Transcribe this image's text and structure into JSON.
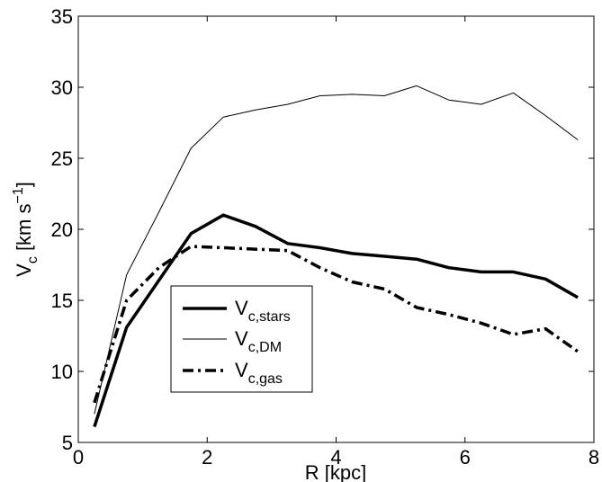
{
  "chart_data": {
    "type": "line",
    "xlabel": "R [kpc]",
    "ylabel": {
      "base": "V",
      "sub": "c",
      "rest": " [km s",
      "sup": "−1",
      "end": "]"
    },
    "xlim": [
      0,
      8
    ],
    "ylim": [
      5,
      35
    ],
    "xticks": [
      0,
      2,
      4,
      6,
      8
    ],
    "yticks": [
      5,
      10,
      15,
      20,
      25,
      30,
      35
    ],
    "grid": false,
    "legend_position": "lower-left",
    "series": [
      {
        "name": "V",
        "name_sub": "c,stars",
        "style": "solid-thick",
        "x": [
          0.25,
          0.75,
          1.25,
          1.75,
          2.25,
          2.75,
          3.25,
          3.75,
          4.25,
          4.75,
          5.25,
          5.75,
          6.25,
          6.75,
          7.25,
          7.75
        ],
        "y": [
          6.1,
          13.1,
          16.4,
          19.7,
          21.0,
          20.2,
          19.0,
          18.7,
          18.3,
          18.1,
          17.9,
          17.3,
          17.0,
          17.0,
          16.5,
          15.2
        ]
      },
      {
        "name": "V",
        "name_sub": "c,DM",
        "style": "solid-thin",
        "x": [
          0.25,
          0.75,
          1.25,
          1.75,
          2.25,
          2.75,
          3.25,
          3.75,
          4.25,
          4.75,
          5.25,
          5.75,
          6.25,
          6.75,
          7.25,
          7.75
        ],
        "y": [
          7.0,
          16.8,
          21.2,
          25.7,
          27.9,
          28.4,
          28.8,
          29.4,
          29.5,
          29.4,
          30.1,
          29.1,
          28.8,
          29.6,
          28.0,
          26.3
        ]
      },
      {
        "name": "V",
        "name_sub": "c,gas",
        "style": "dash-dot-thick",
        "x": [
          0.25,
          0.75,
          1.25,
          1.75,
          2.25,
          2.75,
          3.25,
          3.75,
          4.25,
          4.75,
          5.25,
          5.75,
          6.25,
          6.75,
          7.25,
          7.75
        ],
        "y": [
          7.8,
          15.0,
          17.3,
          18.8,
          18.7,
          18.6,
          18.5,
          17.3,
          16.3,
          15.8,
          14.5,
          14.0,
          13.4,
          12.6,
          13.0,
          11.4
        ]
      }
    ]
  }
}
